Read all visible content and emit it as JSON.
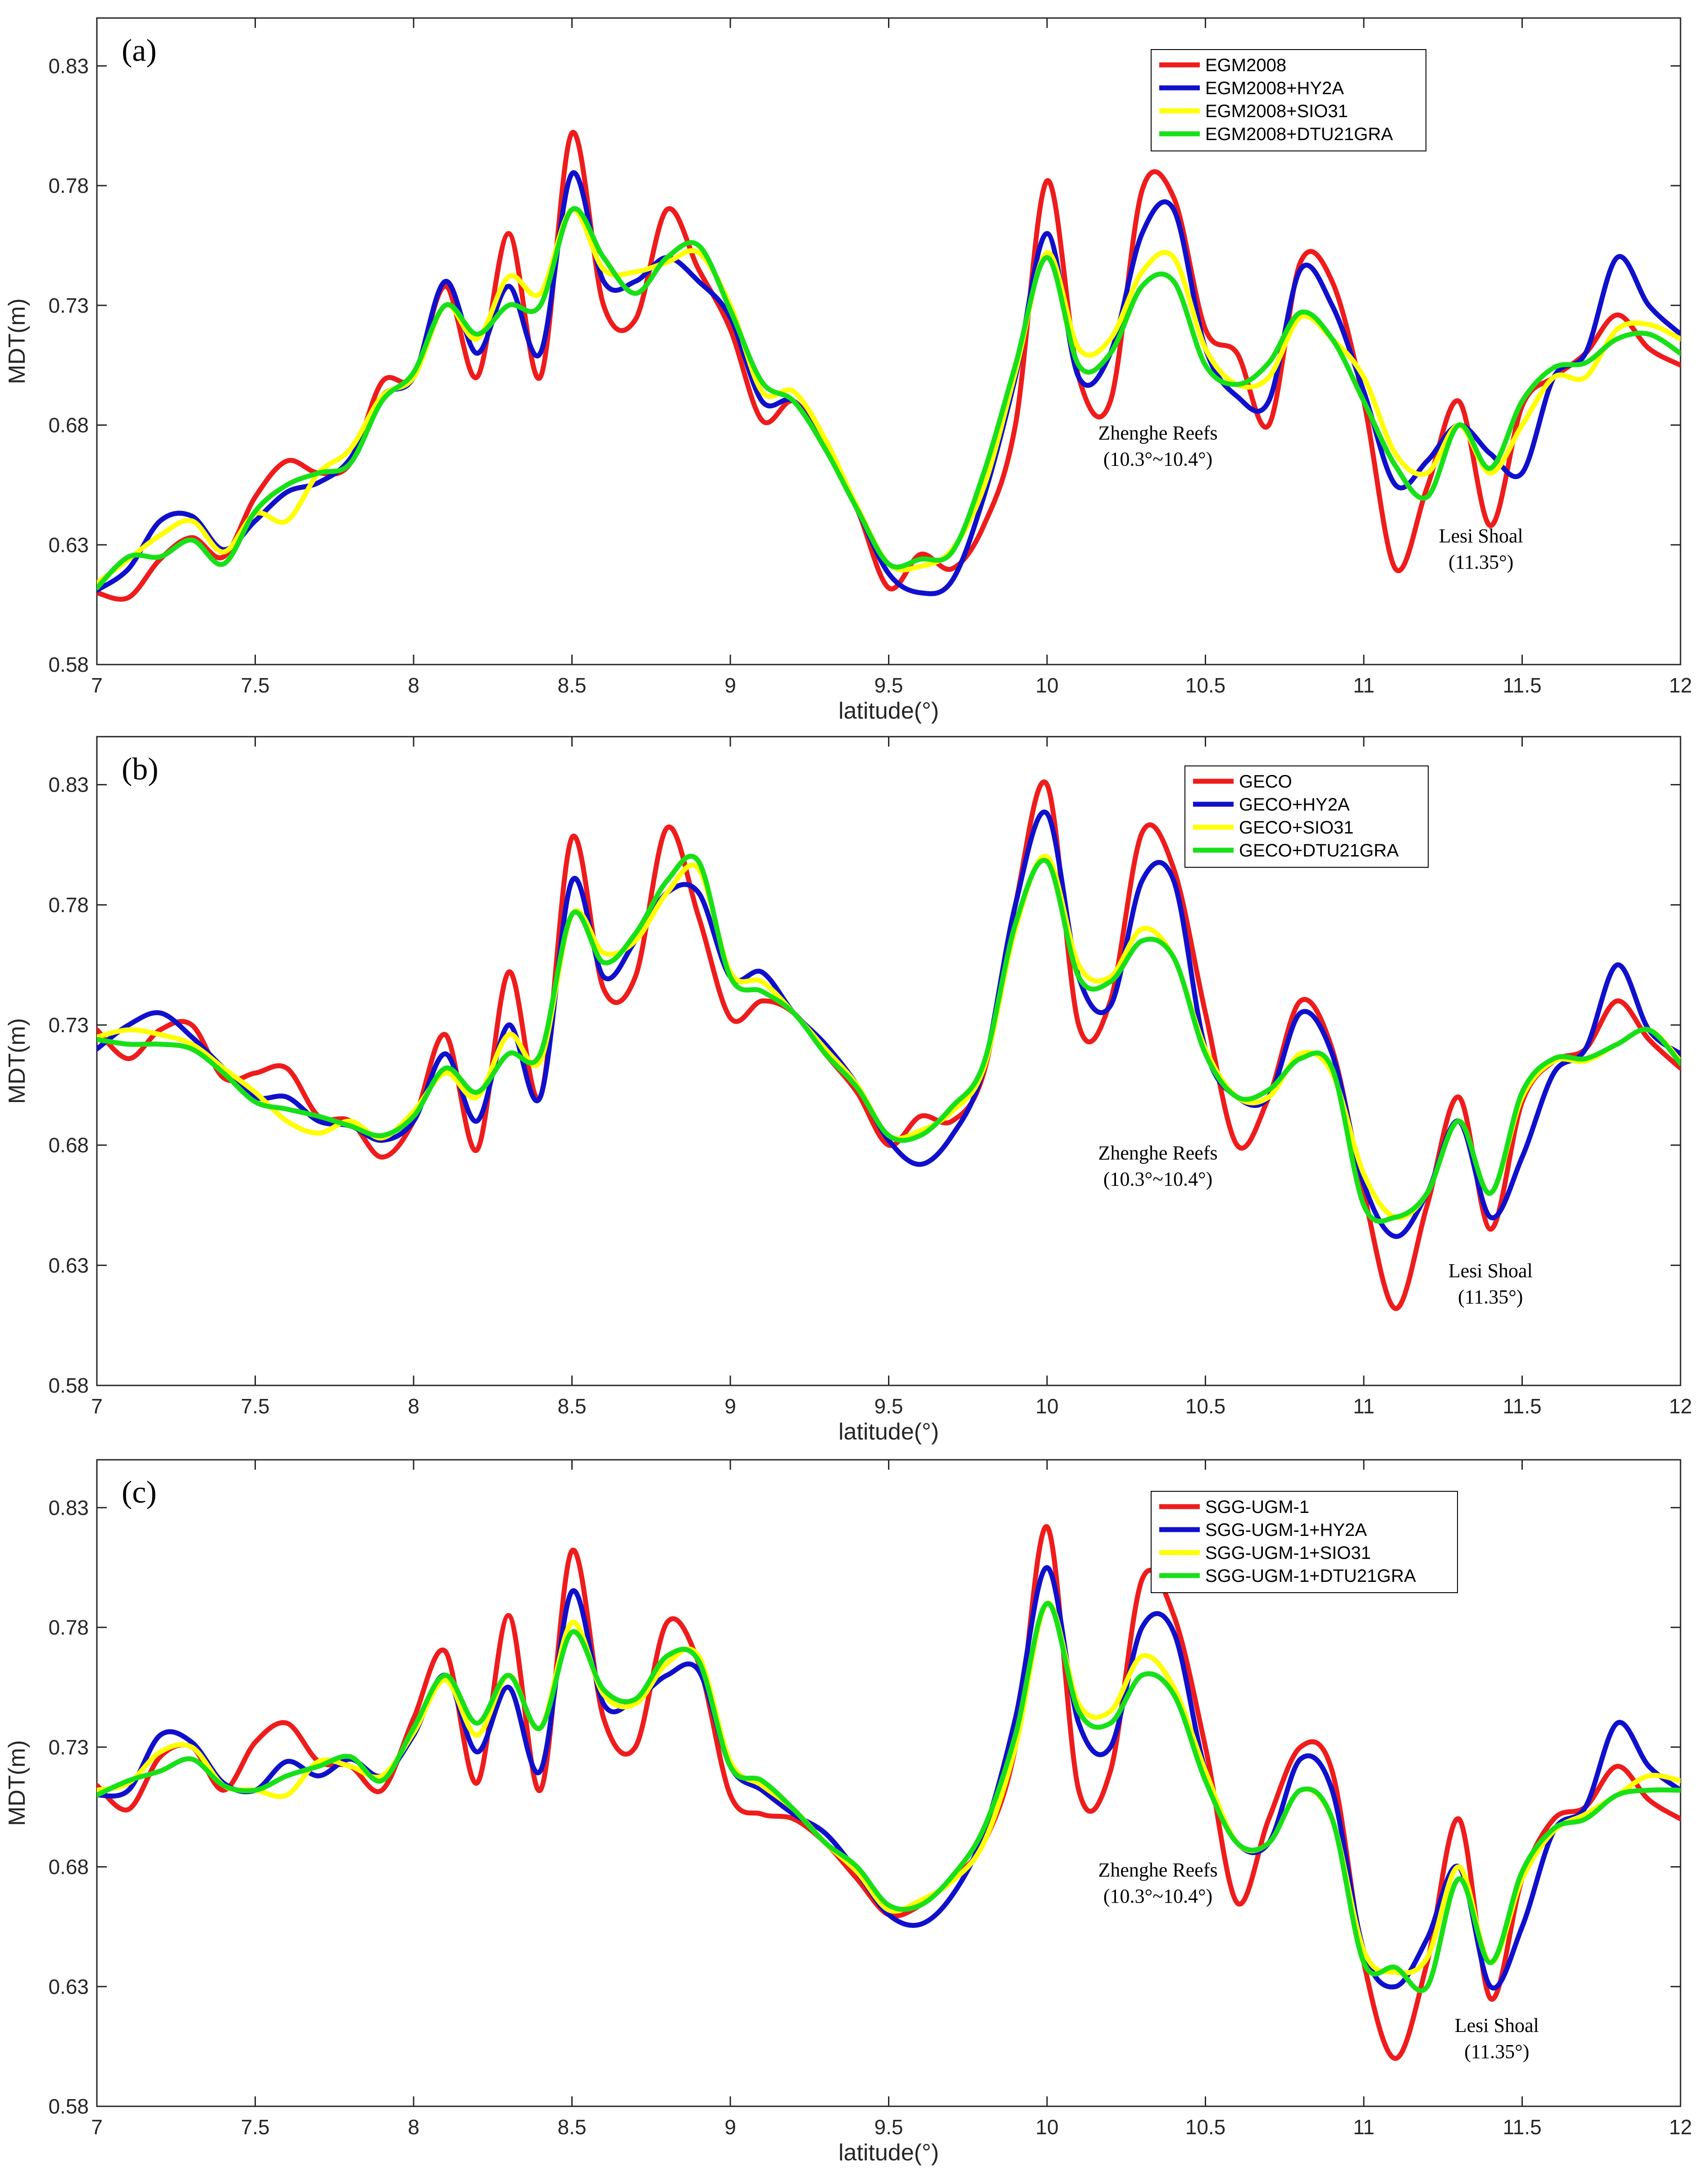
{
  "figure": {
    "colors": {
      "red": "#ee1c1c",
      "blue": "#1010cc",
      "yellow": "#ffff00",
      "green": "#18e018",
      "axis": "#262626"
    }
  },
  "chart_data": [
    {
      "type": "line",
      "panel_label": "(a)",
      "xlabel": "latitude(°)",
      "ylabel": "MDT(m)",
      "xlim": [
        7,
        12
      ],
      "ylim": [
        0.58,
        0.85
      ],
      "xticks": [
        7,
        7.5,
        8,
        8.5,
        9,
        9.5,
        10,
        10.5,
        11,
        11.5,
        12
      ],
      "xtick_labels": [
        "7",
        "7.5",
        "8",
        "8.5",
        "9",
        "9.5",
        "10",
        "10.5",
        "11",
        "11.5",
        "12"
      ],
      "yticks": [
        0.58,
        0.63,
        0.68,
        0.73,
        0.78,
        0.83
      ],
      "ytick_labels": [
        "0.58",
        "0.63",
        "0.68",
        "0.73",
        "0.78",
        "0.83"
      ],
      "grid": false,
      "legend_position": "top-right",
      "annotations": [
        {
          "lines": [
            "Zhenghe Reefs",
            "(10.3°~10.4°)"
          ],
          "x": 10.35,
          "y": 0.674
        },
        {
          "lines": [
            "Lesi Shoal",
            "(11.35°)"
          ],
          "x": 11.37,
          "y": 0.631
        }
      ],
      "x": [
        7.0,
        7.1,
        7.2,
        7.3,
        7.4,
        7.5,
        7.6,
        7.7,
        7.8,
        7.9,
        8.0,
        8.1,
        8.2,
        8.3,
        8.4,
        8.5,
        8.6,
        8.7,
        8.8,
        8.9,
        9.0,
        9.1,
        9.2,
        9.3,
        9.4,
        9.5,
        9.6,
        9.7,
        9.8,
        9.9,
        10.0,
        10.1,
        10.2,
        10.3,
        10.4,
        10.5,
        10.6,
        10.7,
        10.8,
        10.9,
        11.0,
        11.1,
        11.2,
        11.3,
        11.4,
        11.5,
        11.6,
        11.7,
        11.8,
        11.9,
        12.0
      ],
      "series": [
        {
          "name": "EGM2008",
          "color": "red",
          "values": [
            0.61,
            0.608,
            0.624,
            0.633,
            0.625,
            0.65,
            0.665,
            0.66,
            0.664,
            0.698,
            0.7,
            0.738,
            0.7,
            0.76,
            0.7,
            0.802,
            0.73,
            0.724,
            0.77,
            0.745,
            0.72,
            0.682,
            0.69,
            0.67,
            0.645,
            0.612,
            0.626,
            0.62,
            0.638,
            0.68,
            0.782,
            0.7,
            0.69,
            0.778,
            0.775,
            0.72,
            0.71,
            0.68,
            0.748,
            0.74,
            0.69,
            0.62,
            0.654,
            0.69,
            0.638,
            0.688,
            0.7,
            0.71,
            0.726,
            0.712,
            0.705
          ]
        },
        {
          "name": "EGM2008+HY2A",
          "color": "blue",
          "values": [
            0.611,
            0.62,
            0.64,
            0.642,
            0.628,
            0.64,
            0.652,
            0.656,
            0.666,
            0.692,
            0.7,
            0.74,
            0.71,
            0.738,
            0.71,
            0.785,
            0.74,
            0.74,
            0.75,
            0.74,
            0.725,
            0.69,
            0.69,
            0.67,
            0.645,
            0.618,
            0.61,
            0.615,
            0.65,
            0.7,
            0.76,
            0.7,
            0.71,
            0.76,
            0.77,
            0.712,
            0.692,
            0.69,
            0.745,
            0.73,
            0.694,
            0.655,
            0.665,
            0.68,
            0.668,
            0.66,
            0.7,
            0.71,
            0.75,
            0.73,
            0.718
          ]
        },
        {
          "name": "EGM2008+SIO31",
          "color": "yellow",
          "values": [
            0.614,
            0.624,
            0.634,
            0.64,
            0.627,
            0.643,
            0.64,
            0.66,
            0.67,
            0.692,
            0.7,
            0.73,
            0.716,
            0.742,
            0.735,
            0.77,
            0.745,
            0.744,
            0.748,
            0.752,
            0.73,
            0.694,
            0.694,
            0.674,
            0.646,
            0.622,
            0.621,
            0.628,
            0.654,
            0.702,
            0.752,
            0.712,
            0.716,
            0.744,
            0.75,
            0.712,
            0.697,
            0.7,
            0.725,
            0.716,
            0.7,
            0.668,
            0.66,
            0.68,
            0.66,
            0.68,
            0.7,
            0.7,
            0.72,
            0.722,
            0.716
          ]
        },
        {
          "name": "EGM2008+DTU21GRA",
          "color": "green",
          "values": [
            0.612,
            0.625,
            0.625,
            0.632,
            0.622,
            0.644,
            0.655,
            0.66,
            0.664,
            0.69,
            0.702,
            0.73,
            0.718,
            0.73,
            0.73,
            0.77,
            0.75,
            0.735,
            0.75,
            0.755,
            0.728,
            0.698,
            0.69,
            0.67,
            0.645,
            0.622,
            0.624,
            0.627,
            0.66,
            0.705,
            0.75,
            0.705,
            0.71,
            0.738,
            0.74,
            0.705,
            0.697,
            0.706,
            0.727,
            0.716,
            0.69,
            0.663,
            0.65,
            0.68,
            0.662,
            0.69,
            0.704,
            0.706,
            0.716,
            0.718,
            0.71
          ]
        }
      ]
    },
    {
      "type": "line",
      "panel_label": "(b)",
      "xlabel": "latitude(°)",
      "ylabel": "MDT(m)",
      "xlim": [
        7,
        12
      ],
      "ylim": [
        0.58,
        0.85
      ],
      "xticks": [
        7,
        7.5,
        8,
        8.5,
        9,
        9.5,
        10,
        10.5,
        11,
        11.5,
        12
      ],
      "xtick_labels": [
        "7",
        "7.5",
        "8",
        "8.5",
        "9",
        "9.5",
        "10",
        "10.5",
        "11",
        "11.5",
        "12"
      ],
      "yticks": [
        0.58,
        0.63,
        0.68,
        0.73,
        0.78,
        0.83
      ],
      "ytick_labels": [
        "0.58",
        "0.63",
        "0.68",
        "0.73",
        "0.78",
        "0.83"
      ],
      "grid": false,
      "legend_position": "top-right",
      "annotations": [
        {
          "lines": [
            "Zhenghe Reefs",
            "(10.3°~10.4°)"
          ],
          "x": 10.35,
          "y": 0.674
        },
        {
          "lines": [
            "Lesi Shoal",
            "(11.35°)"
          ],
          "x": 11.4,
          "y": 0.625
        }
      ],
      "x": [
        7.0,
        7.1,
        7.2,
        7.3,
        7.4,
        7.5,
        7.6,
        7.7,
        7.8,
        7.9,
        8.0,
        8.1,
        8.2,
        8.3,
        8.4,
        8.5,
        8.6,
        8.7,
        8.8,
        8.9,
        9.0,
        9.1,
        9.2,
        9.3,
        9.4,
        9.5,
        9.6,
        9.7,
        9.8,
        9.9,
        10.0,
        10.1,
        10.2,
        10.3,
        10.4,
        10.5,
        10.6,
        10.7,
        10.8,
        10.9,
        11.0,
        11.1,
        11.2,
        11.3,
        11.4,
        11.5,
        11.6,
        11.7,
        11.8,
        11.9,
        12.0
      ],
      "series": [
        {
          "name": "GECO",
          "color": "red",
          "values": [
            0.728,
            0.716,
            0.728,
            0.73,
            0.708,
            0.71,
            0.712,
            0.692,
            0.69,
            0.675,
            0.69,
            0.726,
            0.678,
            0.752,
            0.7,
            0.808,
            0.745,
            0.75,
            0.812,
            0.775,
            0.733,
            0.74,
            0.735,
            0.718,
            0.702,
            0.68,
            0.692,
            0.69,
            0.71,
            0.78,
            0.83,
            0.73,
            0.74,
            0.81,
            0.795,
            0.735,
            0.68,
            0.7,
            0.74,
            0.72,
            0.66,
            0.612,
            0.655,
            0.7,
            0.645,
            0.698,
            0.715,
            0.72,
            0.74,
            0.724,
            0.712
          ]
        },
        {
          "name": "GECO+HY2A",
          "color": "blue",
          "values": [
            0.72,
            0.73,
            0.735,
            0.725,
            0.712,
            0.7,
            0.7,
            0.69,
            0.688,
            0.682,
            0.69,
            0.718,
            0.69,
            0.73,
            0.7,
            0.79,
            0.75,
            0.765,
            0.785,
            0.785,
            0.75,
            0.752,
            0.735,
            0.722,
            0.705,
            0.682,
            0.672,
            0.684,
            0.712,
            0.78,
            0.818,
            0.75,
            0.738,
            0.79,
            0.79,
            0.72,
            0.7,
            0.7,
            0.735,
            0.718,
            0.664,
            0.642,
            0.66,
            0.69,
            0.65,
            0.675,
            0.71,
            0.72,
            0.755,
            0.728,
            0.718
          ]
        },
        {
          "name": "GECO+SIO31",
          "color": "yellow",
          "values": [
            0.725,
            0.728,
            0.726,
            0.722,
            0.712,
            0.702,
            0.69,
            0.685,
            0.69,
            0.683,
            0.694,
            0.71,
            0.7,
            0.726,
            0.715,
            0.776,
            0.76,
            0.765,
            0.785,
            0.795,
            0.752,
            0.748,
            0.735,
            0.72,
            0.705,
            0.684,
            0.686,
            0.694,
            0.712,
            0.77,
            0.8,
            0.755,
            0.75,
            0.77,
            0.758,
            0.72,
            0.7,
            0.7,
            0.718,
            0.71,
            0.668,
            0.65,
            0.66,
            0.69,
            0.66,
            0.7,
            0.715,
            0.715,
            0.722,
            0.728,
            0.715
          ]
        },
        {
          "name": "GECO+DTU21GRA",
          "color": "green",
          "values": [
            0.724,
            0.722,
            0.722,
            0.72,
            0.71,
            0.698,
            0.695,
            0.692,
            0.688,
            0.684,
            0.692,
            0.712,
            0.702,
            0.718,
            0.718,
            0.776,
            0.756,
            0.768,
            0.79,
            0.798,
            0.75,
            0.744,
            0.735,
            0.718,
            0.704,
            0.684,
            0.684,
            0.696,
            0.714,
            0.772,
            0.798,
            0.75,
            0.748,
            0.765,
            0.758,
            0.718,
            0.7,
            0.703,
            0.716,
            0.712,
            0.655,
            0.65,
            0.66,
            0.69,
            0.66,
            0.702,
            0.716,
            0.716,
            0.722,
            0.728,
            0.714
          ]
        }
      ]
    },
    {
      "type": "line",
      "panel_label": "(c)",
      "xlabel": "latitude(°)",
      "ylabel": "MDT(m)",
      "xlim": [
        7,
        12
      ],
      "ylim": [
        0.58,
        0.85
      ],
      "xticks": [
        7,
        7.5,
        8,
        8.5,
        9,
        9.5,
        10,
        10.5,
        11,
        11.5,
        12
      ],
      "xtick_labels": [
        "7",
        "7.5",
        "8",
        "8.5",
        "9",
        "9.5",
        "10",
        "10.5",
        "11",
        "11.5",
        "12"
      ],
      "yticks": [
        0.58,
        0.63,
        0.68,
        0.73,
        0.78,
        0.83
      ],
      "ytick_labels": [
        "0.58",
        "0.63",
        "0.68",
        "0.73",
        "0.78",
        "0.83"
      ],
      "grid": false,
      "legend_position": "top-right",
      "annotations": [
        {
          "lines": [
            "Zhenghe Reefs",
            "(10.3°~10.4°)"
          ],
          "x": 10.35,
          "y": 0.676
        },
        {
          "lines": [
            "Lesi Shoal",
            "(11.35°)"
          ],
          "x": 11.42,
          "y": 0.611
        }
      ],
      "x": [
        7.0,
        7.1,
        7.2,
        7.3,
        7.4,
        7.5,
        7.6,
        7.7,
        7.8,
        7.9,
        8.0,
        8.1,
        8.2,
        8.3,
        8.4,
        8.5,
        8.6,
        8.7,
        8.8,
        8.9,
        9.0,
        9.1,
        9.2,
        9.3,
        9.4,
        9.5,
        9.6,
        9.7,
        9.8,
        9.9,
        10.0,
        10.1,
        10.2,
        10.3,
        10.4,
        10.5,
        10.6,
        10.7,
        10.8,
        10.9,
        11.0,
        11.1,
        11.2,
        11.3,
        11.4,
        11.5,
        11.6,
        11.7,
        11.8,
        11.9,
        12.0
      ],
      "series": [
        {
          "name": "SGG-UGM-1",
          "color": "red",
          "values": [
            0.714,
            0.704,
            0.726,
            0.73,
            0.712,
            0.732,
            0.74,
            0.724,
            0.722,
            0.712,
            0.742,
            0.77,
            0.715,
            0.785,
            0.712,
            0.812,
            0.742,
            0.73,
            0.782,
            0.765,
            0.71,
            0.702,
            0.7,
            0.69,
            0.675,
            0.66,
            0.664,
            0.675,
            0.69,
            0.73,
            0.822,
            0.712,
            0.72,
            0.8,
            0.785,
            0.73,
            0.665,
            0.7,
            0.73,
            0.72,
            0.64,
            0.6,
            0.64,
            0.7,
            0.625,
            0.675,
            0.7,
            0.705,
            0.722,
            0.708,
            0.7
          ]
        },
        {
          "name": "SGG-UGM-1+HY2A",
          "color": "blue",
          "values": [
            0.71,
            0.712,
            0.735,
            0.732,
            0.715,
            0.712,
            0.724,
            0.718,
            0.725,
            0.718,
            0.735,
            0.76,
            0.728,
            0.755,
            0.72,
            0.795,
            0.748,
            0.75,
            0.76,
            0.762,
            0.722,
            0.712,
            0.702,
            0.694,
            0.678,
            0.66,
            0.656,
            0.668,
            0.694,
            0.742,
            0.805,
            0.74,
            0.73,
            0.78,
            0.778,
            0.72,
            0.69,
            0.69,
            0.725,
            0.712,
            0.645,
            0.63,
            0.65,
            0.68,
            0.63,
            0.655,
            0.695,
            0.705,
            0.74,
            0.722,
            0.712
          ]
        },
        {
          "name": "SGG-UGM-1+SIO31",
          "color": "yellow",
          "values": [
            0.712,
            0.715,
            0.728,
            0.73,
            0.714,
            0.712,
            0.71,
            0.724,
            0.722,
            0.718,
            0.736,
            0.758,
            0.735,
            0.76,
            0.738,
            0.782,
            0.752,
            0.748,
            0.765,
            0.768,
            0.724,
            0.714,
            0.704,
            0.69,
            0.678,
            0.662,
            0.666,
            0.674,
            0.69,
            0.73,
            0.79,
            0.748,
            0.745,
            0.768,
            0.755,
            0.72,
            0.69,
            0.69,
            0.712,
            0.7,
            0.645,
            0.636,
            0.642,
            0.68,
            0.64,
            0.675,
            0.695,
            0.702,
            0.71,
            0.718,
            0.716
          ]
        },
        {
          "name": "SGG-UGM-1+DTU21GRA",
          "color": "green",
          "values": [
            0.71,
            0.716,
            0.72,
            0.725,
            0.714,
            0.712,
            0.718,
            0.722,
            0.726,
            0.716,
            0.738,
            0.76,
            0.74,
            0.76,
            0.738,
            0.778,
            0.754,
            0.75,
            0.768,
            0.766,
            0.722,
            0.716,
            0.704,
            0.69,
            0.68,
            0.664,
            0.664,
            0.676,
            0.696,
            0.735,
            0.79,
            0.745,
            0.74,
            0.76,
            0.752,
            0.716,
            0.69,
            0.69,
            0.712,
            0.7,
            0.64,
            0.638,
            0.63,
            0.675,
            0.64,
            0.678,
            0.696,
            0.7,
            0.71,
            0.712,
            0.712
          ]
        }
      ]
    }
  ]
}
